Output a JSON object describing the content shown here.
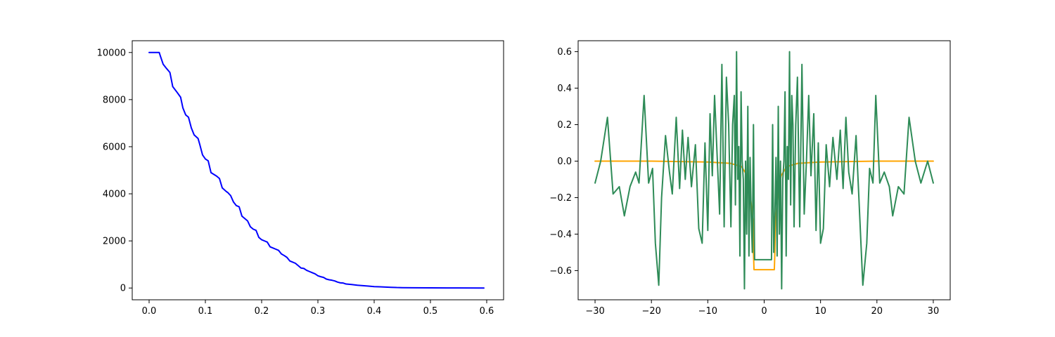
{
  "chart_data": [
    {
      "type": "line",
      "title": "",
      "xlabel": "",
      "ylabel": "",
      "xlim": [
        -0.03,
        0.63
      ],
      "ylim": [
        -500,
        10500
      ],
      "xticks": [
        0.0,
        0.1,
        0.2,
        0.3,
        0.4,
        0.5,
        0.6
      ],
      "xtick_labels": [
        "0.0",
        "0.1",
        "0.2",
        "0.3",
        "0.4",
        "0.5",
        "0.6"
      ],
      "yticks": [
        0,
        2000,
        4000,
        6000,
        8000,
        10000
      ],
      "ytick_labels": [
        "0",
        "2000",
        "4000",
        "6000",
        "8000",
        "10000"
      ],
      "grid": false,
      "series": [
        {
          "color": "#0000ff",
          "x": [
            0.0,
            0.018,
            0.02,
            0.025,
            0.03,
            0.037,
            0.042,
            0.05,
            0.056,
            0.06,
            0.065,
            0.07,
            0.075,
            0.08,
            0.087,
            0.09,
            0.095,
            0.1,
            0.105,
            0.11,
            0.12,
            0.125,
            0.13,
            0.137,
            0.14,
            0.145,
            0.15,
            0.155,
            0.16,
            0.165,
            0.17,
            0.175,
            0.18,
            0.185,
            0.19,
            0.195,
            0.2,
            0.205,
            0.21,
            0.215,
            0.22,
            0.225,
            0.23,
            0.235,
            0.24,
            0.245,
            0.25,
            0.255,
            0.26,
            0.265,
            0.27,
            0.275,
            0.28,
            0.285,
            0.29,
            0.295,
            0.3,
            0.305,
            0.31,
            0.315,
            0.32,
            0.325,
            0.33,
            0.335,
            0.34,
            0.345,
            0.35,
            0.355,
            0.36,
            0.37,
            0.38,
            0.39,
            0.4,
            0.41,
            0.42,
            0.43,
            0.44,
            0.45,
            0.47,
            0.5,
            0.55,
            0.595
          ],
          "y": [
            10000,
            10000,
            9850,
            9500,
            9350,
            9150,
            8550,
            8300,
            8100,
            7650,
            7350,
            7250,
            6800,
            6500,
            6350,
            6100,
            5650,
            5480,
            5400,
            4900,
            4750,
            4650,
            4250,
            4100,
            4050,
            3920,
            3650,
            3500,
            3450,
            3050,
            2950,
            2850,
            2600,
            2500,
            2450,
            2150,
            2050,
            2000,
            1950,
            1750,
            1700,
            1650,
            1600,
            1450,
            1380,
            1300,
            1150,
            1100,
            1050,
            950,
            850,
            830,
            750,
            700,
            650,
            600,
            520,
            480,
            450,
            380,
            350,
            330,
            300,
            250,
            220,
            210,
            170,
            160,
            150,
            120,
            100,
            80,
            60,
            50,
            40,
            30,
            20,
            15,
            10,
            5,
            2,
            0
          ]
        }
      ]
    },
    {
      "type": "line",
      "title": "",
      "xlabel": "",
      "ylabel": "",
      "xlim": [
        -33,
        33
      ],
      "ylim": [
        -0.76,
        0.66
      ],
      "xticks": [
        -30,
        -20,
        -10,
        0,
        10,
        20,
        30
      ],
      "xtick_labels": [
        "−30",
        "−20",
        "−10",
        "0",
        "10",
        "20",
        "30"
      ],
      "yticks": [
        -0.6,
        -0.4,
        -0.2,
        0.0,
        0.2,
        0.4,
        0.6
      ],
      "ytick_labels": [
        "−0.6",
        "−0.4",
        "−0.2",
        "0.0",
        "0.2",
        "0.4",
        "0.6"
      ],
      "grid": false,
      "series": [
        {
          "color": "#ffa500",
          "x": [
            -30,
            -20,
            -10,
            -6,
            -4,
            -3,
            -2.5,
            -2,
            -1.9,
            -1.8,
            1.8,
            1.9,
            2,
            2.5,
            3,
            4,
            6,
            10,
            20,
            30
          ],
          "y": [
            0.0,
            0.0,
            -0.005,
            -0.012,
            -0.03,
            -0.08,
            -0.18,
            -0.32,
            -0.5,
            -0.595,
            -0.595,
            -0.5,
            -0.32,
            -0.18,
            -0.08,
            -0.03,
            -0.012,
            -0.005,
            0.0,
            0.0
          ]
        },
        {
          "color": "#2e8b57",
          "x": [
            -30,
            -29,
            -27.8,
            -26.8,
            -25.7,
            -24.8,
            -23.8,
            -22.8,
            -22.2,
            -21.3,
            -20.5,
            -19.8,
            -19.3,
            -18.7,
            -18.2,
            -17.5,
            -16.8,
            -16.3,
            -15.6,
            -15,
            -14.5,
            -14,
            -13.5,
            -12.9,
            -12.2,
            -11.6,
            -11,
            -10.5,
            -10,
            -9.6,
            -9.2,
            -8.8,
            -8.3,
            -7.9,
            -7.5,
            -7.1,
            -6.7,
            -6.3,
            -5.9,
            -5.6,
            -5.3,
            -5.1,
            -4.9,
            -4.7,
            -4.5,
            -4.3,
            -4.1,
            -3.9,
            -3.7,
            -3.5,
            -3.3,
            -3.1,
            -2.9,
            -2.7,
            -2.5,
            -2.3,
            -2.1,
            -1.9,
            -1.7,
            -1.5,
            -1.3,
            -1.1,
            -0.9,
            0.9,
            1.1,
            1.3,
            1.5,
            1.7,
            1.9,
            2.1,
            2.3,
            2.5,
            2.7,
            2.9,
            3.1,
            3.3,
            3.5,
            3.7,
            3.9,
            4.1,
            4.3,
            4.5,
            4.7,
            4.9,
            5.1,
            5.3,
            5.6,
            5.9,
            6.3,
            6.7,
            7.1,
            7.5,
            7.9,
            8.3,
            8.8,
            9.2,
            9.6,
            10,
            10.5,
            11,
            11.6,
            12.2,
            12.9,
            13.5,
            14,
            14.5,
            15,
            15.6,
            16.3,
            16.8,
            17.5,
            18.2,
            18.7,
            19.3,
            19.8,
            20.5,
            21.3,
            22.2,
            22.8,
            23.8,
            24.8,
            25.7,
            26.8,
            27.8,
            29,
            30
          ],
          "y": [
            -0.12,
            0.0,
            0.24,
            -0.18,
            -0.14,
            -0.3,
            -0.14,
            -0.06,
            -0.12,
            0.36,
            -0.12,
            -0.04,
            -0.45,
            -0.68,
            -0.2,
            0.14,
            -0.06,
            -0.18,
            0.24,
            -0.15,
            0.17,
            -0.1,
            0.13,
            -0.14,
            0.09,
            -0.37,
            -0.45,
            0.1,
            -0.38,
            0.26,
            -0.08,
            0.36,
            0.0,
            -0.29,
            0.53,
            -0.36,
            0.46,
            0.2,
            -0.36,
            0.2,
            0.36,
            -0.24,
            0.6,
            -0.1,
            0.08,
            -0.52,
            0.38,
            0.0,
            -0.1,
            -0.7,
            0.0,
            -0.4,
            0.3,
            -0.52,
            0.02,
            -0.3,
            -0.5,
            0.2,
            -0.54,
            -0.54,
            -0.54,
            -0.54,
            -0.54,
            -0.54,
            -0.54,
            -0.54,
            0.2,
            -0.5,
            -0.3,
            0.02,
            -0.52,
            0.3,
            -0.4,
            0.0,
            -0.7,
            -0.1,
            0.0,
            0.38,
            -0.52,
            0.08,
            -0.1,
            0.6,
            -0.24,
            0.36,
            0.2,
            -0.36,
            0.2,
            0.46,
            -0.36,
            0.53,
            -0.29,
            0.0,
            0.36,
            -0.08,
            0.26,
            -0.38,
            0.1,
            -0.45,
            -0.37,
            0.09,
            -0.14,
            0.13,
            -0.1,
            0.17,
            -0.15,
            0.24,
            -0.06,
            -0.18,
            0.14,
            -0.2,
            -0.68,
            -0.45,
            -0.04,
            -0.12,
            0.36,
            -0.12,
            -0.06,
            -0.14,
            -0.3,
            -0.14,
            -0.18,
            0.24,
            0.0,
            -0.12,
            0.0,
            -0.12
          ]
        }
      ]
    }
  ]
}
